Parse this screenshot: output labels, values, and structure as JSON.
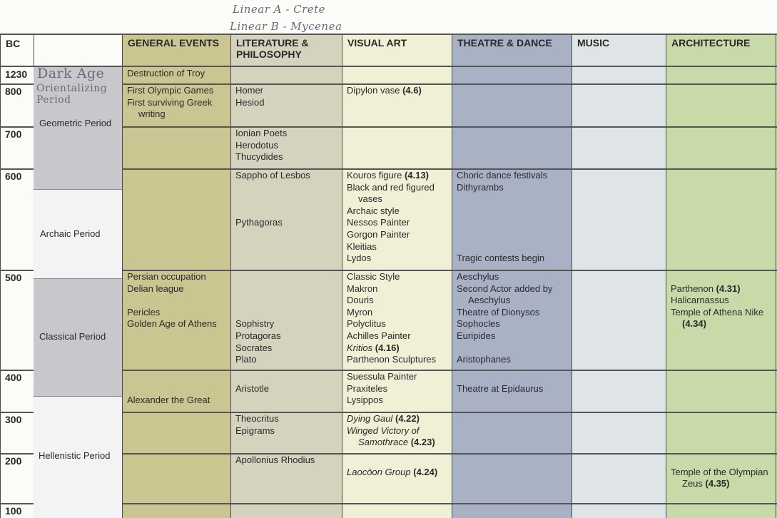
{
  "annotations": {
    "line1": "Linear A - Crete",
    "line2": "Linear B - Mycenea",
    "dark_age": "Dark Age",
    "orientalizing": "Orientalizing Period"
  },
  "headers": {
    "bc": "BC",
    "general": "GENERAL EVENTS",
    "lit": "LITERATURE & PHILOSOPHY",
    "visual": "VISUAL ART",
    "theatre": "THEATRE & DANCE",
    "music": "MUSIC",
    "arch": "ARCHITECTURE"
  },
  "colors": {
    "period_gray": "#c9c6cc",
    "general": "#cbc592",
    "lit": "#d5d2be",
    "visual": "#eff0d6",
    "theatre": "#a9b1c5",
    "music": "#dfe4e6",
    "arch": "#c9daa9"
  },
  "periods": [
    "Geometric Period",
    "Archaic Period",
    "Classical Period",
    "Hellenistic Period"
  ],
  "rows": [
    {
      "bc": "1230",
      "general": [
        {
          "t": "Destruction of Troy"
        }
      ]
    },
    {
      "bc": "800",
      "general": [
        {
          "t": "First Olympic Games"
        },
        {
          "t": "First surviving Greek writing"
        }
      ],
      "lit": [
        {
          "t": "Homer"
        },
        {
          "t": "Hesiod"
        }
      ],
      "visual": [
        {
          "t": "Dipylon vase",
          "ref": "(4.6)"
        }
      ]
    },
    {
      "bc": "700",
      "lit": [
        {
          "t": "Ionian Poets"
        },
        {
          "t": "Herodotus"
        },
        {
          "t": "Thucydides"
        }
      ]
    },
    {
      "bc": "600",
      "lit": [
        {
          "t": "Sappho of Lesbos"
        },
        null,
        null,
        null,
        {
          "t": "Pythagoras"
        }
      ],
      "visual": [
        {
          "t": "Kouros figure",
          "ref": "(4.13)"
        },
        {
          "t": "Black and red figured vases"
        },
        {
          "t": "Archaic style"
        },
        {
          "t": "Nessos Painter"
        },
        {
          "t": "Gorgon Painter"
        },
        {
          "t": "Kleitias"
        },
        {
          "t": "Lydos"
        }
      ],
      "theatre": [
        {
          "t": "Choric dance festivals"
        },
        {
          "t": "Dithyrambs"
        },
        null,
        null,
        null,
        null,
        null,
        {
          "t": "Tragic contests begin"
        }
      ]
    },
    {
      "bc": "500",
      "general": [
        {
          "t": "Persian occupation"
        },
        {
          "t": "Delian league"
        },
        null,
        {
          "t": "Pericles"
        },
        {
          "t": "Golden Age of Athens"
        }
      ],
      "lit": [
        null,
        null,
        null,
        null,
        {
          "t": "Sophistry"
        },
        {
          "t": "Protagoras"
        },
        {
          "t": "Socrates"
        },
        {
          "t": "Plato"
        }
      ],
      "visual": [
        {
          "t": "Classic Style"
        },
        {
          "t": "Makron"
        },
        {
          "t": "Douris"
        },
        {
          "t": "Myron"
        },
        {
          "t": "Polyclitus"
        },
        {
          "t": "Achilles Painter"
        },
        {
          "t": "Kritios",
          "italic": true,
          "ref": "(4.16)"
        },
        {
          "t": "Parthenon Sculptures"
        }
      ],
      "theatre": [
        {
          "t": "Aeschylus"
        },
        {
          "t": "Second Actor added by Aeschylus"
        },
        {
          "t": "Theatre of Dionysos"
        },
        {
          "t": "Sophocles"
        },
        {
          "t": "Euripides"
        },
        null,
        {
          "t": "Aristophanes"
        }
      ],
      "arch": [
        null,
        {
          "t": "Parthenon",
          "ref": "(4.31)"
        },
        {
          "t": "Halicarnassus"
        },
        {
          "t": "Temple of Athena Nike",
          "ref": "(4.34)"
        }
      ]
    },
    {
      "bc": "400",
      "general": [
        null,
        null,
        {
          "t": "Alexander the Great"
        }
      ],
      "lit": [
        null,
        {
          "t": "Aristotle"
        }
      ],
      "visual": [
        {
          "t": "Suessula Painter"
        },
        {
          "t": "Praxiteles"
        },
        {
          "t": "Lysippos"
        }
      ],
      "theatre": [
        null,
        {
          "t": "Theatre at Epidaurus"
        }
      ]
    },
    {
      "bc": "300",
      "lit": [
        {
          "t": "Theocritus"
        },
        {
          "t": "Epigrams"
        }
      ],
      "visual": [
        {
          "t": "Dying Gaul",
          "italic": true,
          "ref": "(4.22)"
        },
        {
          "t": "Winged Victory of Samothrace",
          "italic": true,
          "ref": "(4.23)"
        }
      ]
    },
    {
      "bc": "200",
      "lit": [
        {
          "t": "Apollonius Rhodius"
        }
      ],
      "visual": [
        null,
        {
          "t": "Laocöon Group",
          "italic": true,
          "ref": "(4.24)"
        }
      ],
      "arch": [
        null,
        {
          "t": "Temple of the Olympian Zeus",
          "ref": "(4.35)"
        }
      ]
    },
    {
      "bc": "100"
    }
  ]
}
